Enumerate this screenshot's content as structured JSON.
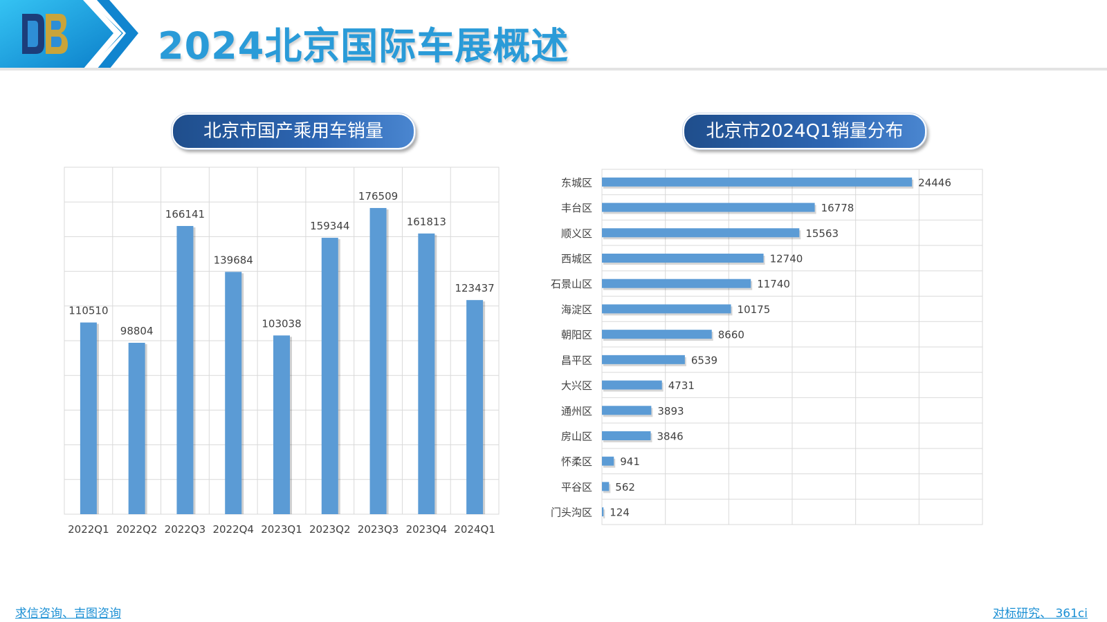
{
  "header": {
    "title": "2024北京国际车展概述",
    "logo_icon": "db-logo-icon"
  },
  "colors": {
    "bar": "#5b9bd5",
    "title": "#2a9bd8",
    "pill": "#2d66b3",
    "grid": "#d9d9d9",
    "footer_link": "#1a8fd4"
  },
  "left_panel": {
    "title": "北京市国产乘用车销量"
  },
  "right_panel": {
    "title": "北京市2024Q1销量分布"
  },
  "chart_data": [
    {
      "type": "bar",
      "title": "北京市国产乘用车销量",
      "categories": [
        "2022Q1",
        "2022Q2",
        "2022Q3",
        "2022Q4",
        "2023Q1",
        "2023Q2",
        "2023Q3",
        "2023Q4",
        "2024Q1"
      ],
      "values": [
        110510,
        98804,
        166141,
        139684,
        103038,
        159344,
        176509,
        161813,
        123437
      ],
      "ylim": [
        0,
        200000
      ],
      "grid": true,
      "data_labels": true
    },
    {
      "type": "bar",
      "orientation": "horizontal",
      "title": "北京市2024Q1销量分布",
      "categories": [
        "东城区",
        "丰台区",
        "顺义区",
        "西城区",
        "石景山区",
        "海淀区",
        "朝阳区",
        "昌平区",
        "大兴区",
        "通州区",
        "房山区",
        "怀柔区",
        "平谷区",
        "门头沟区"
      ],
      "values": [
        24446,
        16778,
        15563,
        12740,
        11740,
        10175,
        8660,
        6539,
        4731,
        3893,
        3846,
        941,
        562,
        124
      ],
      "xlim": [
        0,
        30000
      ],
      "grid": true,
      "data_labels": true
    }
  ],
  "footer": {
    "left_link": "求信咨询、吉图咨询",
    "right_link": "对标研究、 361ci"
  }
}
